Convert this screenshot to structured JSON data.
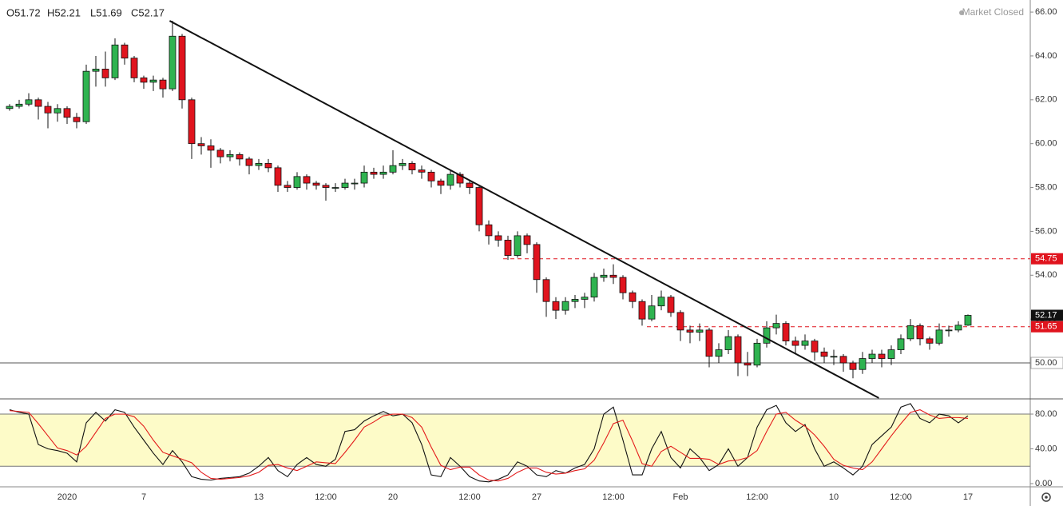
{
  "chart_data": {
    "type": "candlestick",
    "legend_text": [
      "O51.72",
      "H52.21",
      "L51.69",
      "C52.17"
    ],
    "status": "Market Closed",
    "categories": [
      null,
      null,
      null,
      null,
      null,
      null,
      "2020",
      null,
      null,
      null,
      null,
      null,
      null,
      null,
      "7",
      null,
      null,
      null,
      null,
      null,
      null,
      null,
      null,
      null,
      null,
      null,
      "13",
      null,
      null,
      null,
      null,
      null,
      null,
      "12:00",
      null,
      null,
      null,
      null,
      null,
      null,
      "20",
      null,
      null,
      null,
      null,
      null,
      null,
      null,
      "12:00",
      null,
      null,
      null,
      null,
      null,
      null,
      "27",
      null,
      null,
      null,
      null,
      null,
      null,
      null,
      "12:00",
      null,
      null,
      null,
      null,
      null,
      null,
      "Feb",
      null,
      null,
      null,
      null,
      null,
      null,
      null,
      "12:00",
      null,
      null,
      null,
      null,
      null,
      null,
      null,
      "10",
      null,
      null,
      null,
      null,
      null,
      null,
      "12:00",
      null,
      null,
      null,
      null,
      null,
      null,
      "17"
    ],
    "ohlc": [
      [
        61.6,
        61.8,
        61.5,
        61.7
      ],
      [
        61.7,
        62.0,
        61.6,
        61.8
      ],
      [
        61.8,
        62.3,
        61.7,
        62.0
      ],
      [
        62.0,
        62.1,
        61.1,
        61.7
      ],
      [
        61.7,
        61.9,
        60.7,
        61.4
      ],
      [
        61.4,
        61.8,
        61.0,
        61.6
      ],
      [
        61.6,
        61.7,
        60.9,
        61.2
      ],
      [
        61.2,
        61.4,
        60.7,
        61.0
      ],
      [
        61.0,
        63.6,
        60.9,
        63.3
      ],
      [
        63.3,
        64.0,
        62.6,
        63.4
      ],
      [
        63.4,
        64.2,
        62.6,
        63.0
      ],
      [
        63.0,
        64.8,
        62.9,
        64.5
      ],
      [
        64.5,
        64.6,
        63.6,
        63.9
      ],
      [
        63.9,
        64.0,
        62.8,
        63.0
      ],
      [
        63.0,
        63.1,
        62.5,
        62.8
      ],
      [
        62.8,
        63.1,
        62.4,
        62.9
      ],
      [
        62.9,
        63.0,
        62.1,
        62.5
      ],
      [
        62.5,
        65.6,
        62.4,
        64.9
      ],
      [
        64.9,
        65.0,
        61.6,
        62.0
      ],
      [
        62.0,
        62.1,
        59.3,
        60.0
      ],
      [
        60.0,
        60.3,
        59.5,
        59.9
      ],
      [
        59.9,
        60.2,
        58.9,
        59.7
      ],
      [
        59.7,
        59.8,
        59.1,
        59.4
      ],
      [
        59.4,
        59.7,
        59.2,
        59.5
      ],
      [
        59.5,
        59.6,
        59.0,
        59.3
      ],
      [
        59.3,
        59.4,
        58.6,
        59.0
      ],
      [
        59.0,
        59.3,
        58.8,
        59.1
      ],
      [
        59.1,
        59.3,
        58.7,
        58.9
      ],
      [
        58.9,
        59.0,
        57.8,
        58.1
      ],
      [
        58.1,
        58.3,
        57.8,
        58.0
      ],
      [
        58.0,
        58.7,
        57.9,
        58.5
      ],
      [
        58.5,
        58.6,
        57.9,
        58.2
      ],
      [
        58.2,
        58.3,
        57.9,
        58.1
      ],
      [
        58.1,
        58.2,
        57.4,
        58.0
      ],
      [
        58.0,
        58.2,
        57.8,
        58.0
      ],
      [
        58.0,
        58.4,
        57.9,
        58.2
      ],
      [
        58.2,
        58.4,
        57.9,
        58.2
      ],
      [
        58.2,
        59.0,
        58.0,
        58.7
      ],
      [
        58.7,
        58.9,
        58.4,
        58.6
      ],
      [
        58.6,
        59.0,
        58.4,
        58.7
      ],
      [
        58.7,
        59.7,
        58.6,
        59.0
      ],
      [
        59.0,
        59.3,
        58.8,
        59.1
      ],
      [
        59.1,
        59.2,
        58.6,
        58.8
      ],
      [
        58.8,
        59.0,
        58.4,
        58.7
      ],
      [
        58.7,
        58.8,
        58.0,
        58.3
      ],
      [
        58.3,
        58.4,
        57.7,
        58.1
      ],
      [
        58.1,
        58.8,
        57.9,
        58.6
      ],
      [
        58.6,
        58.7,
        58.0,
        58.2
      ],
      [
        58.2,
        58.3,
        57.7,
        58.0
      ],
      [
        58.0,
        58.1,
        56.0,
        56.3
      ],
      [
        56.3,
        56.5,
        55.4,
        55.8
      ],
      [
        55.8,
        56.0,
        55.3,
        55.6
      ],
      [
        55.6,
        55.8,
        54.7,
        54.9
      ],
      [
        54.9,
        56.0,
        54.8,
        55.8
      ],
      [
        55.8,
        55.9,
        55.0,
        55.4
      ],
      [
        55.4,
        55.5,
        53.2,
        53.8
      ],
      [
        53.8,
        53.9,
        52.1,
        52.8
      ],
      [
        52.8,
        53.0,
        52.0,
        52.4
      ],
      [
        52.4,
        53.0,
        52.2,
        52.8
      ],
      [
        52.8,
        53.1,
        52.5,
        52.9
      ],
      [
        52.9,
        53.2,
        52.5,
        53.0
      ],
      [
        53.0,
        54.1,
        52.8,
        53.9
      ],
      [
        53.9,
        54.3,
        53.7,
        54.0
      ],
      [
        54.0,
        54.5,
        53.6,
        53.9
      ],
      [
        53.9,
        54.0,
        52.9,
        53.2
      ],
      [
        53.2,
        53.3,
        52.5,
        52.8
      ],
      [
        52.8,
        52.9,
        51.7,
        52.0
      ],
      [
        52.0,
        53.1,
        51.9,
        52.6
      ],
      [
        52.6,
        53.3,
        52.4,
        53.0
      ],
      [
        53.0,
        53.1,
        52.1,
        52.3
      ],
      [
        52.3,
        52.4,
        51.0,
        51.5
      ],
      [
        51.5,
        51.7,
        50.9,
        51.4
      ],
      [
        51.4,
        51.8,
        51.0,
        51.5
      ],
      [
        51.5,
        51.6,
        49.8,
        50.3
      ],
      [
        50.3,
        50.9,
        50.0,
        50.6
      ],
      [
        50.6,
        51.5,
        50.4,
        51.2
      ],
      [
        51.2,
        51.3,
        49.4,
        50.0
      ],
      [
        50.0,
        50.5,
        49.4,
        49.9
      ],
      [
        49.9,
        51.1,
        49.8,
        50.9
      ],
      [
        50.9,
        51.9,
        50.7,
        51.6
      ],
      [
        51.6,
        52.2,
        51.3,
        51.8
      ],
      [
        51.8,
        51.9,
        50.8,
        51.0
      ],
      [
        51.0,
        51.2,
        50.4,
        50.8
      ],
      [
        50.8,
        51.3,
        50.6,
        51.0
      ],
      [
        51.0,
        51.1,
        50.1,
        50.5
      ],
      [
        50.5,
        50.7,
        50.0,
        50.3
      ],
      [
        50.3,
        50.6,
        49.9,
        50.3
      ],
      [
        50.3,
        50.4,
        49.6,
        50.0
      ],
      [
        50.0,
        50.1,
        49.3,
        49.7
      ],
      [
        49.7,
        50.5,
        49.5,
        50.2
      ],
      [
        50.2,
        50.6,
        50.0,
        50.4
      ],
      [
        50.4,
        50.6,
        49.8,
        50.2
      ],
      [
        50.2,
        50.8,
        49.9,
        50.6
      ],
      [
        50.6,
        51.3,
        50.4,
        51.1
      ],
      [
        51.1,
        52.0,
        51.0,
        51.7
      ],
      [
        51.7,
        51.8,
        50.8,
        51.1
      ],
      [
        51.1,
        51.2,
        50.6,
        50.9
      ],
      [
        50.9,
        51.8,
        50.8,
        51.5
      ],
      [
        51.5,
        51.7,
        51.2,
        51.5
      ],
      [
        51.5,
        51.9,
        51.4,
        51.72
      ],
      [
        51.72,
        52.21,
        51.69,
        52.17
      ]
    ],
    "up_color": "#2fb350",
    "down_color": "#e0141e",
    "ylim": [
      48.36,
      66.55
    ],
    "yticks": [
      {
        "value": 50,
        "label": "50.00"
      },
      {
        "value": 52,
        "label": "52.00"
      },
      {
        "value": 54,
        "label": "54.00"
      },
      {
        "value": 56,
        "label": "56.00"
      },
      {
        "value": 58,
        "label": "58.00"
      },
      {
        "value": 60,
        "label": "60.00"
      },
      {
        "value": 62,
        "label": "62.00"
      },
      {
        "value": 64,
        "label": "64.00"
      },
      {
        "value": 66,
        "label": "66.00"
      }
    ],
    "levels": [
      {
        "value": 54.75,
        "color": "#e0141e",
        "style": "dashed"
      },
      {
        "value": 51.65,
        "color": "#e0141e",
        "style": "dashed"
      },
      {
        "value": {
          "value": 50,
          "label": "50.00"
        },
        "color": "#555555",
        "style": "solid"
      }
    ],
    "last_price": 52.17,
    "trendline": {
      "x": [
        16.7,
        90.7
      ],
      "y": [
        65.6,
        48.4
      ]
    },
    "stoch": {
      "type": "line",
      "ylim": [
        -3.7,
        97.5
      ],
      "yticks": [
        {
          "value": 0,
          "label": "0.00"
        },
        {
          "value": 40,
          "label": "40.00"
        },
        {
          "value": 80,
          "label": "80.00"
        }
      ],
      "band": [
        20,
        80
      ],
      "band_color": "#fdfbc8",
      "series": [
        {
          "color": "#111111",
          "values": [
            85,
            82,
            80,
            45,
            40,
            38,
            35,
            25,
            70,
            82,
            72,
            85,
            82,
            65,
            50,
            35,
            22,
            38,
            25,
            8,
            5,
            4,
            6,
            7,
            8,
            12,
            20,
            30,
            15,
            8,
            22,
            30,
            22,
            20,
            28,
            60,
            62,
            72,
            78,
            83,
            78,
            80,
            70,
            45,
            10,
            8,
            30,
            20,
            8,
            3,
            2,
            5,
            10,
            25,
            20,
            10,
            8,
            15,
            12,
            18,
            22,
            40,
            80,
            88,
            50,
            10,
            10,
            40,
            60,
            30,
            18,
            40,
            30,
            15,
            22,
            40,
            20,
            30,
            65,
            85,
            90,
            70,
            60,
            68,
            40,
            20,
            25,
            18,
            10,
            20,
            45,
            55,
            65,
            88,
            92,
            75,
            70,
            80,
            78,
            70,
            78
          ]
        },
        {
          "color": "#e31b1b",
          "values": [
            84,
            83,
            82,
            69,
            55,
            41,
            38,
            33,
            43,
            59,
            75,
            80,
            80,
            77,
            66,
            50,
            36,
            32,
            28,
            24,
            13,
            6,
            5,
            6,
            7,
            9,
            13,
            21,
            22,
            18,
            15,
            20,
            25,
            24,
            23,
            36,
            50,
            65,
            71,
            78,
            80,
            80,
            76,
            65,
            42,
            21,
            16,
            19,
            19,
            10,
            4,
            3,
            6,
            13,
            18,
            18,
            13,
            11,
            12,
            15,
            17,
            27,
            47,
            69,
            73,
            49,
            23,
            20,
            37,
            43,
            36,
            29,
            29,
            28,
            22,
            26,
            27,
            30,
            38,
            60,
            80,
            82,
            73,
            66,
            56,
            43,
            28,
            21,
            18,
            16,
            25,
            40,
            55,
            69,
            82,
            85,
            79,
            75,
            76,
            76,
            75
          ]
        }
      ]
    }
  }
}
